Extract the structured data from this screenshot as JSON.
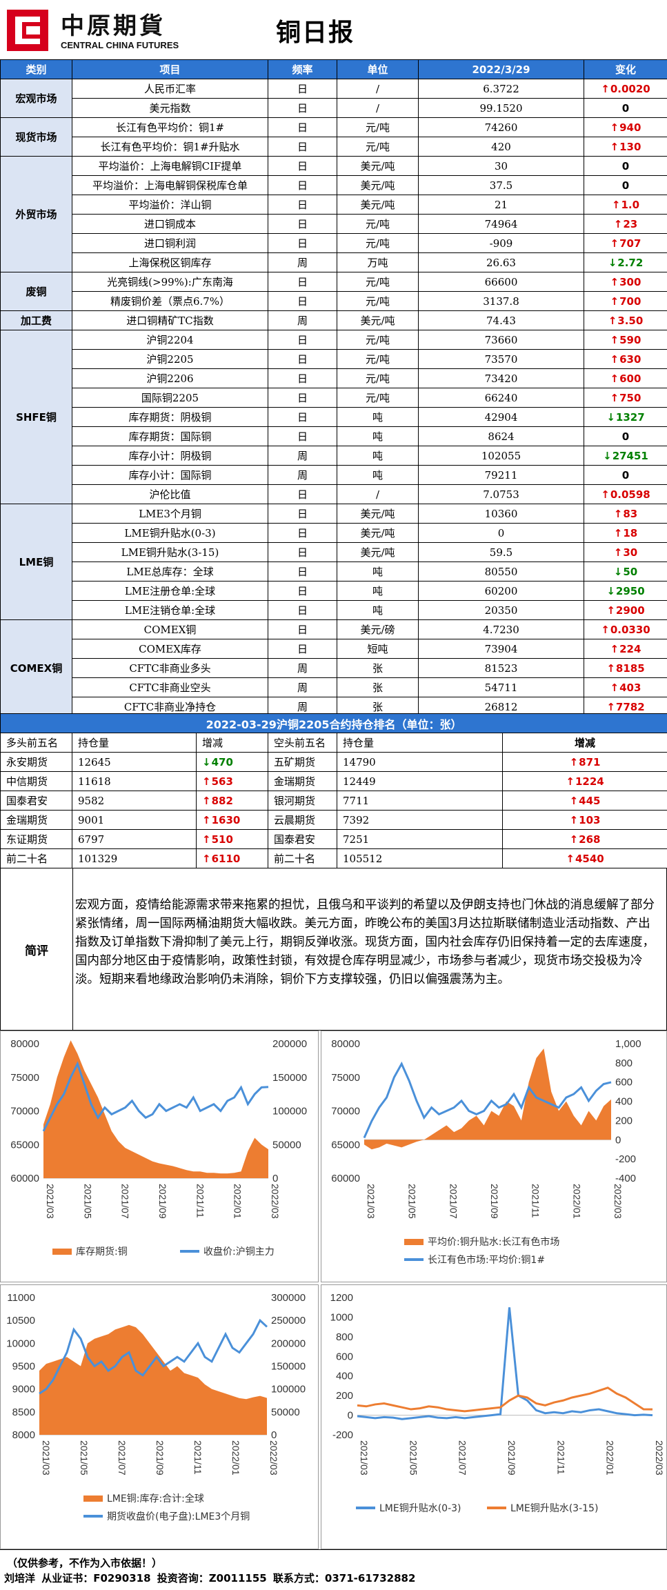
{
  "header": {
    "logo_cn": "中原期貨",
    "logo_en": "CENTRAL CHINA FUTURES",
    "title": "铜日报"
  },
  "table": {
    "headers": [
      "类别",
      "项目",
      "频率",
      "单位",
      "2022/3/29",
      "变化"
    ],
    "groups": [
      {
        "category": "宏观市场",
        "rows": [
          {
            "item": "人民币汇率",
            "freq": "日",
            "unit": "/",
            "value": "6.3722",
            "dir": "up",
            "change": "0.0020"
          },
          {
            "item": "美元指数",
            "freq": "日",
            "unit": "/",
            "value": "99.1520",
            "dir": "zero",
            "change": "0"
          }
        ]
      },
      {
        "category": "现货市场",
        "rows": [
          {
            "item": "长江有色平均价：铜1#",
            "freq": "日",
            "unit": "元/吨",
            "value": "74260",
            "dir": "up",
            "change": "940"
          },
          {
            "item": "长江有色平均价：铜1#升贴水",
            "freq": "日",
            "unit": "元/吨",
            "value": "420",
            "dir": "up",
            "change": "130"
          }
        ]
      },
      {
        "category": "外贸市场",
        "rows": [
          {
            "item": "平均溢价：上海电解铜CIF提单",
            "freq": "日",
            "unit": "美元/吨",
            "value": "30",
            "dir": "zero",
            "change": "0"
          },
          {
            "item": "平均溢价：上海电解铜保税库仓单",
            "freq": "日",
            "unit": "美元/吨",
            "value": "37.5",
            "dir": "zero",
            "change": "0"
          },
          {
            "item": "平均溢价：洋山铜",
            "freq": "日",
            "unit": "美元/吨",
            "value": "21",
            "dir": "up",
            "change": "1.0"
          },
          {
            "item": "进口铜成本",
            "freq": "日",
            "unit": "元/吨",
            "value": "74964",
            "dir": "up",
            "change": "23"
          },
          {
            "item": "进口铜利润",
            "freq": "日",
            "unit": "元/吨",
            "value": "-909",
            "dir": "up",
            "change": "707"
          },
          {
            "item": "上海保税区铜库存",
            "freq": "周",
            "unit": "万吨",
            "value": "26.63",
            "dir": "down",
            "change": "2.72"
          }
        ]
      },
      {
        "category": "废铜",
        "rows": [
          {
            "item": "光亮铜线(>99%):广东南海",
            "freq": "日",
            "unit": "元/吨",
            "value": "66600",
            "dir": "up",
            "change": "300"
          },
          {
            "item": "精废铜价差（票点6.7%）",
            "freq": "日",
            "unit": "元/吨",
            "value": "3137.8",
            "dir": "up",
            "change": "700"
          }
        ]
      },
      {
        "category": "加工费",
        "rows": [
          {
            "item": "进口铜精矿TC指数",
            "freq": "周",
            "unit": "美元/吨",
            "value": "74.43",
            "dir": "up",
            "change": "3.50"
          }
        ]
      },
      {
        "category": "SHFE铜",
        "rows": [
          {
            "item": "沪铜2204",
            "freq": "日",
            "unit": "元/吨",
            "value": "73660",
            "dir": "up",
            "change": "590"
          },
          {
            "item": "沪铜2205",
            "freq": "日",
            "unit": "元/吨",
            "value": "73570",
            "dir": "up",
            "change": "630"
          },
          {
            "item": "沪铜2206",
            "freq": "日",
            "unit": "元/吨",
            "value": "73420",
            "dir": "up",
            "change": "600"
          },
          {
            "item": "国际铜2205",
            "freq": "日",
            "unit": "元/吨",
            "value": "66240",
            "dir": "up",
            "change": "750"
          },
          {
            "item": "库存期货：阴极铜",
            "freq": "日",
            "unit": "吨",
            "value": "42904",
            "dir": "down",
            "change": "1327"
          },
          {
            "item": "库存期货：国际铜",
            "freq": "日",
            "unit": "吨",
            "value": "8624",
            "dir": "zero",
            "change": "0"
          },
          {
            "item": "库存小计：阴极铜",
            "freq": "周",
            "unit": "吨",
            "value": "102055",
            "dir": "down",
            "change": "27451"
          },
          {
            "item": "库存小计：国际铜",
            "freq": "周",
            "unit": "吨",
            "value": "79211",
            "dir": "zero",
            "change": "0"
          },
          {
            "item": "沪伦比值",
            "freq": "日",
            "unit": "/",
            "value": "7.0753",
            "dir": "up",
            "change": "0.0598"
          }
        ]
      },
      {
        "category": "LME铜",
        "rows": [
          {
            "item": "LME3个月铜",
            "freq": "日",
            "unit": "美元/吨",
            "value": "10360",
            "dir": "up",
            "change": "83"
          },
          {
            "item": "LME铜升贴水(0-3)",
            "freq": "日",
            "unit": "美元/吨",
            "value": "0",
            "dir": "up",
            "change": "18"
          },
          {
            "item": "LME铜升贴水(3-15)",
            "freq": "日",
            "unit": "美元/吨",
            "value": "59.5",
            "dir": "up",
            "change": "30"
          },
          {
            "item": "LME总库存：全球",
            "freq": "日",
            "unit": "吨",
            "value": "80550",
            "dir": "down",
            "change": "50"
          },
          {
            "item": "LME注册仓单:全球",
            "freq": "日",
            "unit": "吨",
            "value": "60200",
            "dir": "down",
            "change": "2950"
          },
          {
            "item": "LME注销仓单:全球",
            "freq": "日",
            "unit": "吨",
            "value": "20350",
            "dir": "up",
            "change": "2900"
          }
        ]
      },
      {
        "category": "COMEX铜",
        "rows": [
          {
            "item": "COMEX铜",
            "freq": "日",
            "unit": "美元/磅",
            "value": "4.7230",
            "dir": "up",
            "change": "0.0330"
          },
          {
            "item": "COMEX库存",
            "freq": "日",
            "unit": "短吨",
            "value": "73904",
            "dir": "up",
            "change": "224"
          },
          {
            "item": "CFTC非商业多头",
            "freq": "周",
            "unit": "张",
            "value": "81523",
            "dir": "up",
            "change": "8185"
          },
          {
            "item": "CFTC非商业空头",
            "freq": "周",
            "unit": "张",
            "value": "54711",
            "dir": "up",
            "change": "403"
          },
          {
            "item": "CFTC非商业净持仓",
            "freq": "周",
            "unit": "张",
            "value": "26812",
            "dir": "up",
            "change": "7782"
          }
        ]
      }
    ]
  },
  "ranking": {
    "title": "2022-03-29沪铜2205合约持仓排名（单位：张）",
    "headers": [
      "多头前五名",
      "持仓量",
      "增减",
      "空头前五名",
      "持仓量",
      "增减"
    ],
    "rows": [
      {
        "long_name": "永安期货",
        "long_pos": "12645",
        "long_dir": "down",
        "long_chg": "470",
        "short_name": "五矿期货",
        "short_pos": "14790",
        "short_dir": "up",
        "short_chg": "871"
      },
      {
        "long_name": "中信期货",
        "long_pos": "11618",
        "long_dir": "up",
        "long_chg": "563",
        "short_name": "金瑞期货",
        "short_pos": "12449",
        "short_dir": "up",
        "short_chg": "1224"
      },
      {
        "long_name": "国泰君安",
        "long_pos": "9582",
        "long_dir": "up",
        "long_chg": "882",
        "short_name": "银河期货",
        "short_pos": "7711",
        "short_dir": "up",
        "short_chg": "445"
      },
      {
        "long_name": "金瑞期货",
        "long_pos": "9001",
        "long_dir": "up",
        "long_chg": "1630",
        "short_name": "云晨期货",
        "short_pos": "7392",
        "short_dir": "up",
        "short_chg": "103"
      },
      {
        "long_name": "东证期货",
        "long_pos": "6797",
        "long_dir": "up",
        "long_chg": "510",
        "short_name": "国泰君安",
        "short_pos": "7251",
        "short_dir": "up",
        "short_chg": "268"
      },
      {
        "long_name": "前二十名",
        "long_pos": "101329",
        "long_dir": "up",
        "long_chg": "6110",
        "short_name": "前二十名",
        "short_pos": "105512",
        "short_dir": "up",
        "short_chg": "4540"
      }
    ]
  },
  "comment": {
    "label": "简评",
    "text": "宏观方面，疫情给能源需求带来拖累的担忧，且俄乌和平谈判的希望以及伊朗支持也门休战的消息缓解了部分紧张情绪，周一国际两桶油期货大幅收跌。美元方面，昨晚公布的美国3月达拉斯联储制造业活动指数、产出指数及订单指数下滑抑制了美元上行，期铜反弹收涨。现货方面，国内社会库存仍旧保持着一定的去库速度，国内部分地区由于疫情影响，政策性封锁，有效提仓库存明显减少，市场参与者减少，现货市场交投极为冷淡。短期来看地缘政治影响仍未消除，铜价下方支撑较强，仍旧以偏强震荡为主。"
  },
  "chart_data": [
    {
      "type": "area",
      "title": "",
      "x_ticks": [
        "2021/03",
        "2021/05",
        "2021/07",
        "2021/09",
        "2021/11",
        "2022/01",
        "2022/03"
      ],
      "left_axis": {
        "min": 60000,
        "max": 80000,
        "ticks": [
          "60000",
          "65000",
          "70000",
          "75000",
          "80000"
        ]
      },
      "right_axis": {
        "min": 0,
        "max": 200000,
        "ticks": [
          "0",
          "50000",
          "100000",
          "150000",
          "200000"
        ]
      },
      "series": [
        {
          "name": "库存期货:铜",
          "kind": "area",
          "axis": "right",
          "color": "#ed7d31",
          "values": [
            80000,
            110000,
            150000,
            180000,
            205000,
            185000,
            160000,
            140000,
            120000,
            95000,
            70000,
            55000,
            45000,
            40000,
            35000,
            30000,
            25000,
            22000,
            20000,
            18000,
            15000,
            12000,
            10000,
            10000,
            8000,
            8000,
            7000,
            7000,
            8000,
            10000,
            40000,
            60000,
            50000,
            42904
          ]
        },
        {
          "name": "收盘价:沪铜主力",
          "kind": "line",
          "axis": "left",
          "color": "#4a90d9",
          "values": [
            67000,
            69000,
            71000,
            72500,
            75000,
            77000,
            74000,
            71000,
            69000,
            70500,
            69500,
            70000,
            70500,
            71500,
            70000,
            69000,
            69500,
            71000,
            70000,
            70500,
            71000,
            70500,
            72000,
            70000,
            70500,
            71000,
            70000,
            71500,
            72000,
            73500,
            71000,
            72500,
            73500,
            73570
          ]
        }
      ]
    },
    {
      "type": "area",
      "title": "",
      "x_ticks": [
        "2021/03",
        "2021/05",
        "2021/07",
        "2021/09",
        "2021/11",
        "2022/01",
        "2022/03"
      ],
      "left_axis": {
        "min": 60000,
        "max": 80000,
        "ticks": [
          "60000",
          "65000",
          "70000",
          "75000",
          "80000"
        ]
      },
      "right_axis": {
        "min": -400,
        "max": 1000,
        "ticks": [
          "-400",
          "-200",
          "0",
          "200",
          "400",
          "600",
          "800",
          "1,000"
        ]
      },
      "series": [
        {
          "name": "平均价:铜升贴水:长江有色市场",
          "kind": "area",
          "axis": "right",
          "color": "#ed7d31",
          "values": [
            -50,
            -100,
            -80,
            -40,
            -60,
            -80,
            -50,
            -20,
            0,
            50,
            100,
            150,
            80,
            120,
            200,
            250,
            150,
            300,
            250,
            400,
            350,
            200,
            600,
            850,
            950,
            500,
            300,
            400,
            250,
            150,
            300,
            200,
            350,
            420
          ]
        },
        {
          "name": "长江有色市场:平均价:铜1#",
          "kind": "line",
          "axis": "left",
          "color": "#4a90d9",
          "values": [
            66000,
            68500,
            70500,
            72000,
            75000,
            77000,
            74500,
            71500,
            69000,
            70500,
            69500,
            70000,
            70500,
            71500,
            70000,
            69500,
            70000,
            71500,
            70500,
            71000,
            72500,
            70500,
            73500,
            72000,
            71500,
            71000,
            70500,
            72000,
            72500,
            73500,
            71500,
            73000,
            74000,
            74260
          ]
        }
      ]
    },
    {
      "type": "area",
      "title": "",
      "x_ticks": [
        "2021/03",
        "2021/05",
        "2021/07",
        "2021/09",
        "2021/11",
        "2022/01",
        "2022/03"
      ],
      "left_axis": {
        "min": 8000,
        "max": 11000,
        "ticks": [
          "8000",
          "8500",
          "9000",
          "9500",
          "10000",
          "10500",
          "11000"
        ]
      },
      "right_axis": {
        "min": 0,
        "max": 300000,
        "ticks": [
          "0",
          "50000",
          "100000",
          "150000",
          "200000",
          "250000",
          "300000"
        ]
      },
      "series": [
        {
          "name": "LME铜:库存:合计:全球",
          "kind": "area",
          "axis": "right",
          "color": "#ed7d31",
          "values": [
            140000,
            155000,
            160000,
            165000,
            170000,
            160000,
            150000,
            200000,
            210000,
            215000,
            220000,
            230000,
            235000,
            240000,
            235000,
            220000,
            200000,
            180000,
            160000,
            140000,
            150000,
            135000,
            130000,
            125000,
            110000,
            100000,
            95000,
            90000,
            85000,
            80000,
            78000,
            82000,
            85000,
            80550
          ]
        },
        {
          "name": "期货收盘价(电子盘):LME3个月铜",
          "kind": "line",
          "axis": "left",
          "color": "#4a90d9",
          "values": [
            8900,
            9000,
            9200,
            9500,
            9800,
            10300,
            10100,
            9700,
            9500,
            9600,
            9400,
            9500,
            9700,
            9800,
            9400,
            9300,
            9500,
            9700,
            9500,
            9600,
            9700,
            9600,
            9800,
            10000,
            9700,
            9600,
            9900,
            10200,
            9900,
            9800,
            10000,
            10200,
            10500,
            10360
          ]
        }
      ]
    },
    {
      "type": "line",
      "title": "",
      "x_ticks": [
        "2021/03",
        "2021/05",
        "2021/07",
        "2021/09",
        "2021/11",
        "2022/01",
        "2022/03"
      ],
      "left_axis": {
        "min": -200,
        "max": 1200,
        "ticks": [
          "-200",
          "0",
          "200",
          "400",
          "600",
          "800",
          "1000",
          "1200"
        ]
      },
      "series": [
        {
          "name": "LME铜升贴水(0-3)",
          "kind": "line",
          "axis": "left",
          "color": "#4a90d9",
          "values": [
            -10,
            -20,
            -30,
            -20,
            -25,
            -40,
            -30,
            -20,
            -10,
            -25,
            -30,
            -20,
            -30,
            -20,
            -10,
            0,
            10,
            1100,
            200,
            150,
            50,
            20,
            30,
            20,
            40,
            30,
            50,
            60,
            40,
            20,
            10,
            0,
            5,
            0
          ]
        },
        {
          "name": "LME铜升贴水(3-15)",
          "kind": "line",
          "axis": "left",
          "color": "#ed7d31",
          "values": [
            100,
            90,
            110,
            120,
            100,
            80,
            60,
            70,
            90,
            80,
            60,
            50,
            40,
            50,
            60,
            70,
            80,
            150,
            200,
            180,
            120,
            100,
            130,
            150,
            180,
            200,
            220,
            250,
            280,
            220,
            180,
            120,
            60,
            59.5
          ]
        }
      ]
    }
  ],
  "footer": {
    "disclaimer": "（仅供参考，不作为入市依据！）",
    "line2": "刘培洋  从业证书：F0290318   投资咨询：Z0011155    联系方式：0371-61732882"
  }
}
